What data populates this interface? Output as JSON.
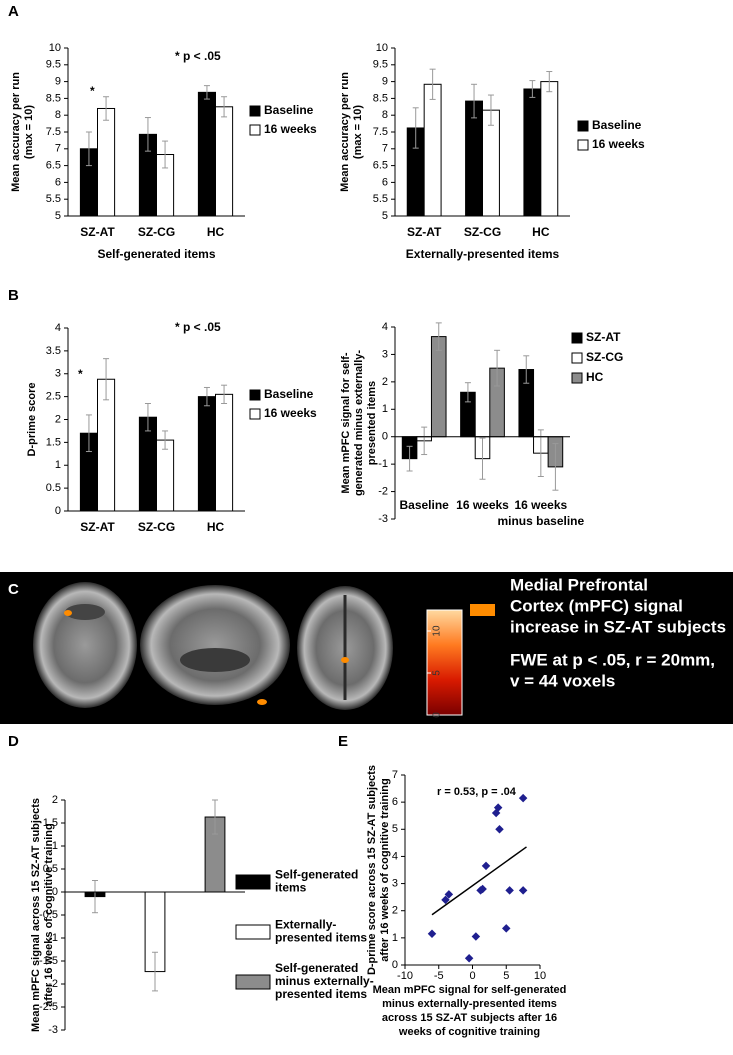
{
  "panels": [
    "A",
    "B",
    "C",
    "D",
    "E"
  ],
  "panel_c": {
    "caption": [
      "Medial Prefrontal",
      "Cortex (mPFC) signal",
      "increase in SZ-AT subjects"
    ],
    "stats": [
      "FWE at p < .05, r = 20mm,",
      "v = 44 voxels"
    ],
    "colorbar": {
      "lim": [
        0,
        12.5
      ],
      "ticks": [
        0,
        5,
        10
      ],
      "colors": [
        "#7a0000",
        "#d81a00",
        "#ff7a20",
        "#ffd9a0"
      ]
    }
  },
  "chart_data": [
    {
      "type": "bar",
      "ylabel": [
        "Mean accuracy per run",
        "(max = 10)"
      ],
      "xlabel": "Self-generated items",
      "categories": [
        "SZ-AT",
        "SZ-CG",
        "HC"
      ],
      "series": [
        {
          "name": "Baseline",
          "color": "#000000",
          "values": [
            7.0,
            7.43,
            8.68
          ],
          "errors": [
            0.5,
            0.5,
            0.2
          ]
        },
        {
          "name": "16 weeks",
          "color": "#ffffff",
          "values": [
            8.2,
            6.83,
            8.25
          ],
          "errors": [
            0.35,
            0.4,
            0.3
          ]
        }
      ],
      "ylim": [
        5,
        10
      ],
      "yticks": [
        5,
        5.5,
        6,
        6.5,
        7,
        7.5,
        8,
        8.5,
        9,
        9.5,
        10
      ],
      "annotations": [
        "* p < .05",
        "*"
      ]
    },
    {
      "type": "bar",
      "ylabel": [
        "Mean accuracy per run",
        "(max = 10)"
      ],
      "xlabel": "Externally-presented items",
      "categories": [
        "SZ-AT",
        "SZ-CG",
        "HC"
      ],
      "series": [
        {
          "name": "Baseline",
          "color": "#000000",
          "values": [
            7.62,
            8.42,
            8.78
          ],
          "errors": [
            0.6,
            0.5,
            0.25
          ]
        },
        {
          "name": "16 weeks",
          "color": "#ffffff",
          "values": [
            8.92,
            8.15,
            9.0
          ],
          "errors": [
            0.45,
            0.45,
            0.3
          ]
        }
      ],
      "ylim": [
        5,
        10
      ],
      "yticks": [
        5,
        5.5,
        6,
        6.5,
        7,
        7.5,
        8,
        8.5,
        9,
        9.5,
        10
      ]
    },
    {
      "type": "bar",
      "ylabel": [
        "D-prime score"
      ],
      "categories": [
        "SZ-AT",
        "SZ-CG",
        "HC"
      ],
      "series": [
        {
          "name": "Baseline",
          "color": "#000000",
          "values": [
            1.7,
            2.05,
            2.5
          ],
          "errors": [
            0.4,
            0.3,
            0.2
          ]
        },
        {
          "name": "16 weeks",
          "color": "#ffffff",
          "values": [
            2.88,
            1.55,
            2.55
          ],
          "errors": [
            0.45,
            0.2,
            0.2
          ]
        }
      ],
      "ylim": [
        0,
        4
      ],
      "yticks": [
        0,
        0.5,
        1,
        1.5,
        2,
        2.5,
        3,
        3.5,
        4
      ],
      "annotations": [
        "* p < .05",
        "*"
      ]
    },
    {
      "type": "bar",
      "ylabel": [
        "Mean mPFC signal for self-",
        "generated minus externally-",
        "presented items"
      ],
      "categories": [
        "Baseline",
        "16 weeks",
        [
          "16 weeks",
          "minus baseline"
        ]
      ],
      "series": [
        {
          "name": "SZ-AT",
          "color": "#000000",
          "values": [
            -0.8,
            1.62,
            2.45
          ],
          "errors": [
            0.45,
            0.35,
            0.5
          ]
        },
        {
          "name": "SZ-CG",
          "color": "#ffffff",
          "values": [
            -0.15,
            -0.8,
            -0.6
          ],
          "errors": [
            0.5,
            0.75,
            0.85
          ]
        },
        {
          "name": "HC",
          "color": "#8c8c8c",
          "values": [
            3.65,
            2.5,
            -1.1
          ],
          "errors": [
            0.5,
            0.65,
            0.85
          ]
        }
      ],
      "ylim": [
        -3,
        4
      ],
      "yticks": [
        -3,
        -2,
        -1,
        0,
        1,
        2,
        3,
        4
      ]
    },
    {
      "type": "bar",
      "ylabel": [
        "Mean mPFC signal across 15 SZ-AT subjects",
        "after 16 weeks of cognitive training"
      ],
      "categories": [
        null
      ],
      "series": [
        {
          "name": [
            "Self-generated",
            "items"
          ],
          "color": "#000000",
          "values": [
            -0.1
          ],
          "errors": [
            0.35
          ]
        },
        {
          "name": [
            "Externally-",
            "presented items"
          ],
          "color": "#ffffff",
          "values": [
            -1.73
          ],
          "errors": [
            0.42
          ]
        },
        {
          "name": [
            "Self-generated",
            "minus externally-",
            "presented items"
          ],
          "color": "#8c8c8c",
          "values": [
            1.63
          ],
          "errors": [
            0.37
          ]
        }
      ],
      "ylim": [
        -3,
        2
      ],
      "yticks": [
        -3,
        -2.5,
        -2,
        -1.5,
        -1,
        -0.5,
        0,
        0.5,
        1,
        1.5,
        2
      ]
    },
    {
      "type": "scatter",
      "ylabel": [
        "D-prime score across 15 SZ-AT subjects",
        "after 16 weeks of cognitive training"
      ],
      "xlabel": [
        "Mean mPFC signal for self-generated",
        "minus externally-presented items",
        "across 15 SZ-AT subjects after 16",
        "weeks of cognitive training"
      ],
      "x": [
        -6,
        -4,
        -3.5,
        -0.5,
        0.5,
        1.2,
        1.5,
        2,
        3.5,
        3.8,
        4,
        5,
        5.5,
        7.5,
        7.5
      ],
      "values": [
        1.15,
        2.4,
        2.6,
        0.25,
        1.05,
        2.75,
        2.8,
        3.65,
        5.6,
        5.8,
        5.0,
        1.35,
        2.75,
        2.75,
        6.15
      ],
      "color": "#1f1f8f",
      "xlim": [
        -10,
        10
      ],
      "xticks": [
        -10,
        -5,
        0,
        5,
        10
      ],
      "ylim": [
        0,
        7
      ],
      "yticks": [
        0,
        1,
        2,
        3,
        4,
        5,
        6,
        7
      ],
      "annotations": [
        "r = 0.53, p = .04"
      ],
      "trendline": {
        "x": [
          -6,
          8
        ],
        "y": [
          1.85,
          4.35
        ]
      }
    }
  ]
}
